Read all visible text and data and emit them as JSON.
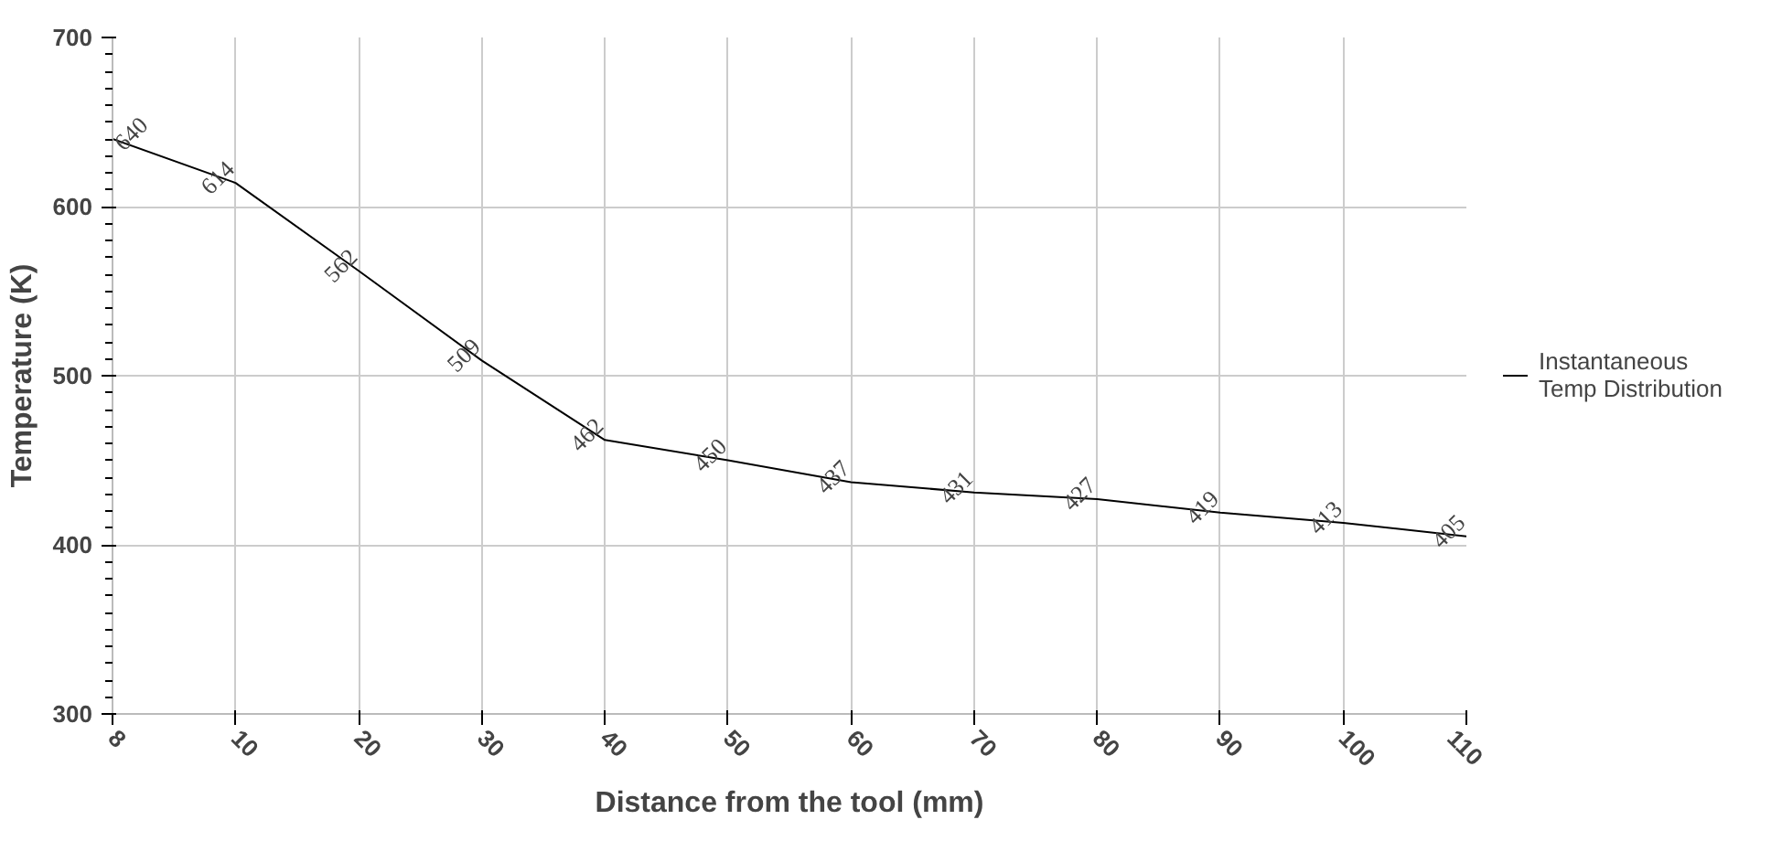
{
  "chart_data": {
    "type": "line",
    "xlabel": "Distance from the tool (mm)",
    "ylabel": "Temperature (K)",
    "categories": [
      "8",
      "10",
      "20",
      "30",
      "40",
      "50",
      "60",
      "70",
      "80",
      "90",
      "100",
      "110"
    ],
    "series": [
      {
        "name": "Instantaneous\nTemp Distribution",
        "color": "#000000",
        "values": [
          640,
          614,
          562,
          509,
          462,
          450,
          437,
          431,
          427,
          419,
          413,
          405
        ]
      }
    ],
    "ylim": [
      300,
      700
    ],
    "yticks": [
      300,
      400,
      500,
      600,
      700
    ],
    "grid": true,
    "legend": "right",
    "data_labels": true,
    "marker": "none",
    "line_style": "solid"
  }
}
